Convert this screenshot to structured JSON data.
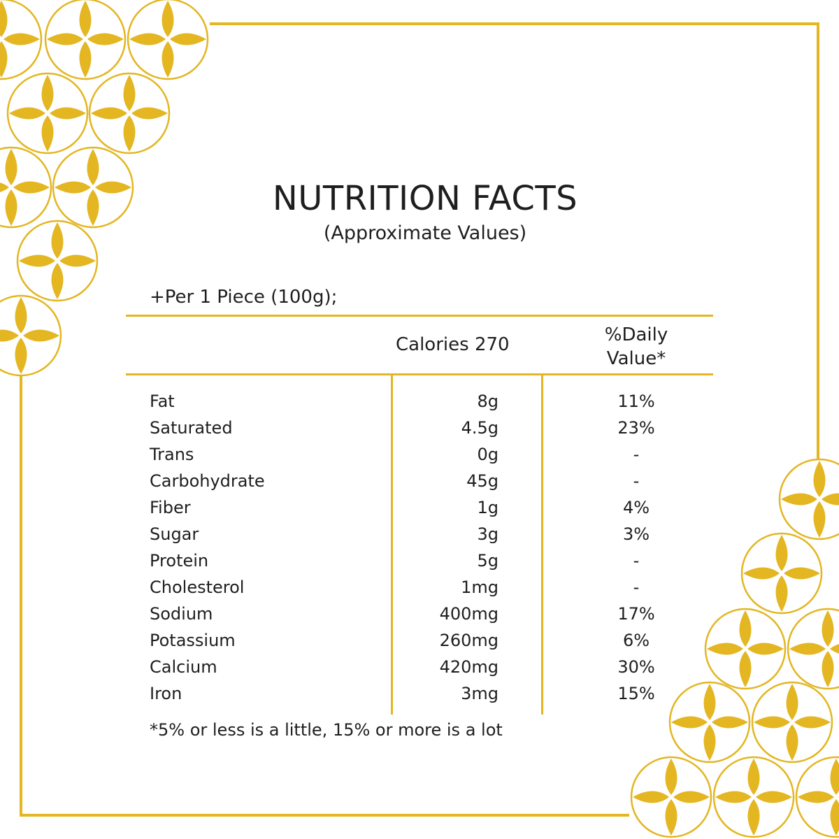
{
  "title": "NUTRITION FACTS",
  "subtitle": "(Approximate Values)",
  "serving": "+Per 1 Piece  (100g);",
  "header": {
    "calories": "Calories 270",
    "daily_value_line1": "%Daily",
    "daily_value_line2": "Value*"
  },
  "nutrients": [
    {
      "name": "Fat",
      "amount": "8g",
      "dv": "11%"
    },
    {
      "name": "Saturated",
      "amount": "4.5g",
      "dv": "23%"
    },
    {
      "name": "Trans",
      "amount": "0g",
      "dv": "-"
    },
    {
      "name": "Carbohydrate",
      "amount": "45g",
      "dv": "-"
    },
    {
      "name": "Fiber",
      "amount": "1g",
      "dv": "4%"
    },
    {
      "name": "Sugar",
      "amount": "3g",
      "dv": "3%"
    },
    {
      "name": "Protein",
      "amount": "5g",
      "dv": "-"
    },
    {
      "name": "Cholesterol",
      "amount": "1mg",
      "dv": "-"
    },
    {
      "name": "Sodium",
      "amount": "400mg",
      "dv": "17%"
    },
    {
      "name": "Potassium",
      "amount": "260mg",
      "dv": "6%"
    },
    {
      "name": "Calcium",
      "amount": "420mg",
      "dv": "30%"
    },
    {
      "name": "Iron",
      "amount": "3mg",
      "dv": "15%"
    }
  ],
  "footnote": "*5% or less is a little, 15% or more is a lot",
  "colors": {
    "accent": "#e3b622",
    "text": "#1e1e1e",
    "background": "#ffffff"
  }
}
